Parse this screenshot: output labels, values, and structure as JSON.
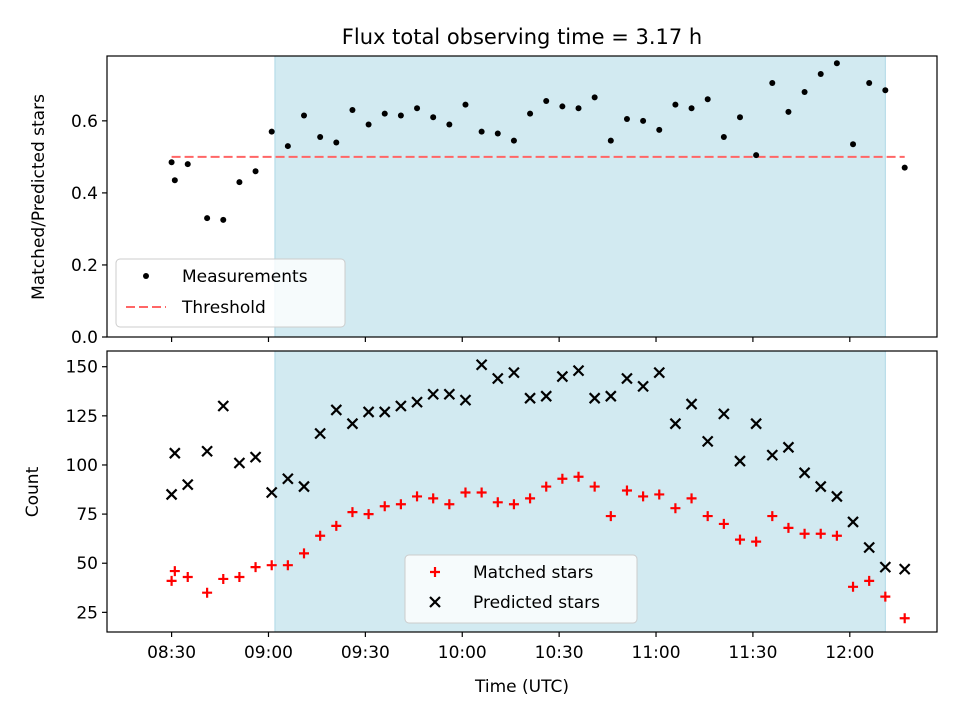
{
  "title": "Flux total observing time = 3.17 h",
  "colors": {
    "shade": "#add8e6",
    "matched": "#ff0000",
    "predicted": "#000000",
    "threshold": "#ff6666",
    "measurement": "#000000"
  },
  "chart_data": [
    {
      "type": "scatter",
      "panel": "top",
      "title": "Flux total observing time = 3.17 h",
      "xlabel": "",
      "ylabel": "Matched/Predicted stars",
      "ylim": [
        0,
        0.78
      ],
      "yticks": [
        0.0,
        0.2,
        0.4,
        0.6
      ],
      "ytick_labels": [
        "0.0",
        "0.2",
        "0.4",
        "0.6"
      ],
      "shaded_interval": [
        "09:02",
        "12:11"
      ],
      "threshold": {
        "name": "Threshold",
        "value": 0.5,
        "x_range": [
          "08:30",
          "12:17"
        ],
        "style": "dashed"
      },
      "legend": {
        "position": "lower-left",
        "entries": [
          "Measurements",
          "Threshold"
        ]
      },
      "series": [
        {
          "name": "Measurements",
          "marker": "dot",
          "points": [
            [
              "08:30",
              0.485
            ],
            [
              "08:31",
              0.435
            ],
            [
              "08:35",
              0.48
            ],
            [
              "08:41",
              0.33
            ],
            [
              "08:46",
              0.325
            ],
            [
              "08:51",
              0.43
            ],
            [
              "08:56",
              0.46
            ],
            [
              "09:01",
              0.57
            ],
            [
              "09:06",
              0.53
            ],
            [
              "09:11",
              0.615
            ],
            [
              "09:16",
              0.555
            ],
            [
              "09:21",
              0.54
            ],
            [
              "09:26",
              0.63
            ],
            [
              "09:31",
              0.59
            ],
            [
              "09:36",
              0.62
            ],
            [
              "09:41",
              0.615
            ],
            [
              "09:46",
              0.635
            ],
            [
              "09:51",
              0.61
            ],
            [
              "09:56",
              0.59
            ],
            [
              "10:01",
              0.645
            ],
            [
              "10:06",
              0.57
            ],
            [
              "10:11",
              0.565
            ],
            [
              "10:16",
              0.545
            ],
            [
              "10:21",
              0.62
            ],
            [
              "10:26",
              0.655
            ],
            [
              "10:31",
              0.64
            ],
            [
              "10:36",
              0.635
            ],
            [
              "10:41",
              0.665
            ],
            [
              "10:46",
              0.545
            ],
            [
              "10:51",
              0.605
            ],
            [
              "10:56",
              0.6
            ],
            [
              "11:01",
              0.575
            ],
            [
              "11:06",
              0.645
            ],
            [
              "11:11",
              0.635
            ],
            [
              "11:16",
              0.66
            ],
            [
              "11:21",
              0.555
            ],
            [
              "11:26",
              0.61
            ],
            [
              "11:31",
              0.505
            ],
            [
              "11:36",
              0.705
            ],
            [
              "11:41",
              0.625
            ],
            [
              "11:46",
              0.68
            ],
            [
              "11:51",
              0.73
            ],
            [
              "11:56",
              0.76
            ],
            [
              "12:01",
              0.535
            ],
            [
              "12:06",
              0.705
            ],
            [
              "12:11",
              0.685
            ],
            [
              "12:17",
              0.47
            ]
          ]
        }
      ]
    },
    {
      "type": "scatter",
      "panel": "bottom",
      "xlabel": "Time (UTC)",
      "ylabel": "Count",
      "xlim": [
        "08:10",
        "12:27"
      ],
      "ylim": [
        15,
        158
      ],
      "yticks": [
        25,
        50,
        75,
        100,
        125,
        150
      ],
      "ytick_labels": [
        "25",
        "50",
        "75",
        "100",
        "125",
        "150"
      ],
      "xticks": [
        "08:30",
        "09:00",
        "09:30",
        "10:00",
        "10:30",
        "11:00",
        "11:30",
        "12:00"
      ],
      "xtick_labels": [
        "08:30",
        "09:00",
        "09:30",
        "10:00",
        "10:30",
        "11:00",
        "11:30",
        "12:00"
      ],
      "shaded_interval": [
        "09:02",
        "12:11"
      ],
      "legend": {
        "position": "lower-center",
        "entries": [
          "Matched stars",
          "Predicted stars"
        ]
      },
      "series": [
        {
          "name": "Matched stars",
          "marker": "plus",
          "points": [
            [
              "08:30",
              41
            ],
            [
              "08:31",
              46
            ],
            [
              "08:35",
              43
            ],
            [
              "08:41",
              35
            ],
            [
              "08:46",
              42
            ],
            [
              "08:51",
              43
            ],
            [
              "08:56",
              48
            ],
            [
              "09:01",
              49
            ],
            [
              "09:06",
              49
            ],
            [
              "09:11",
              55
            ],
            [
              "09:16",
              64
            ],
            [
              "09:21",
              69
            ],
            [
              "09:26",
              76
            ],
            [
              "09:31",
              75
            ],
            [
              "09:36",
              79
            ],
            [
              "09:41",
              80
            ],
            [
              "09:46",
              84
            ],
            [
              "09:51",
              83
            ],
            [
              "09:56",
              80
            ],
            [
              "10:01",
              86
            ],
            [
              "10:06",
              86
            ],
            [
              "10:11",
              81
            ],
            [
              "10:16",
              80
            ],
            [
              "10:21",
              83
            ],
            [
              "10:26",
              89
            ],
            [
              "10:31",
              93
            ],
            [
              "10:36",
              94
            ],
            [
              "10:41",
              89
            ],
            [
              "10:46",
              74
            ],
            [
              "10:51",
              87
            ],
            [
              "10:56",
              84
            ],
            [
              "11:01",
              85
            ],
            [
              "11:06",
              78
            ],
            [
              "11:11",
              83
            ],
            [
              "11:16",
              74
            ],
            [
              "11:21",
              70
            ],
            [
              "11:26",
              62
            ],
            [
              "11:31",
              61
            ],
            [
              "11:36",
              74
            ],
            [
              "11:41",
              68
            ],
            [
              "11:46",
              65
            ],
            [
              "11:51",
              65
            ],
            [
              "11:56",
              64
            ],
            [
              "12:01",
              38
            ],
            [
              "12:06",
              41
            ],
            [
              "12:11",
              33
            ],
            [
              "12:17",
              22
            ]
          ]
        },
        {
          "name": "Predicted stars",
          "marker": "x",
          "points": [
            [
              "08:30",
              85
            ],
            [
              "08:31",
              106
            ],
            [
              "08:35",
              90
            ],
            [
              "08:41",
              107
            ],
            [
              "08:46",
              130
            ],
            [
              "08:51",
              101
            ],
            [
              "08:56",
              104
            ],
            [
              "09:01",
              86
            ],
            [
              "09:06",
              93
            ],
            [
              "09:11",
              89
            ],
            [
              "09:16",
              116
            ],
            [
              "09:21",
              128
            ],
            [
              "09:26",
              121
            ],
            [
              "09:31",
              127
            ],
            [
              "09:36",
              127
            ],
            [
              "09:41",
              130
            ],
            [
              "09:46",
              132
            ],
            [
              "09:51",
              136
            ],
            [
              "09:56",
              136
            ],
            [
              "10:01",
              133
            ],
            [
              "10:06",
              151
            ],
            [
              "10:11",
              144
            ],
            [
              "10:16",
              147
            ],
            [
              "10:21",
              134
            ],
            [
              "10:26",
              135
            ],
            [
              "10:31",
              145
            ],
            [
              "10:36",
              148
            ],
            [
              "10:41",
              134
            ],
            [
              "10:46",
              135
            ],
            [
              "10:51",
              144
            ],
            [
              "10:56",
              140
            ],
            [
              "11:01",
              147
            ],
            [
              "11:06",
              121
            ],
            [
              "11:11",
              131
            ],
            [
              "11:16",
              112
            ],
            [
              "11:21",
              126
            ],
            [
              "11:26",
              102
            ],
            [
              "11:31",
              121
            ],
            [
              "11:36",
              105
            ],
            [
              "11:41",
              109
            ],
            [
              "11:46",
              96
            ],
            [
              "11:51",
              89
            ],
            [
              "11:56",
              84
            ],
            [
              "12:01",
              71
            ],
            [
              "12:06",
              58
            ],
            [
              "12:11",
              48
            ],
            [
              "12:17",
              47
            ]
          ]
        }
      ]
    }
  ]
}
